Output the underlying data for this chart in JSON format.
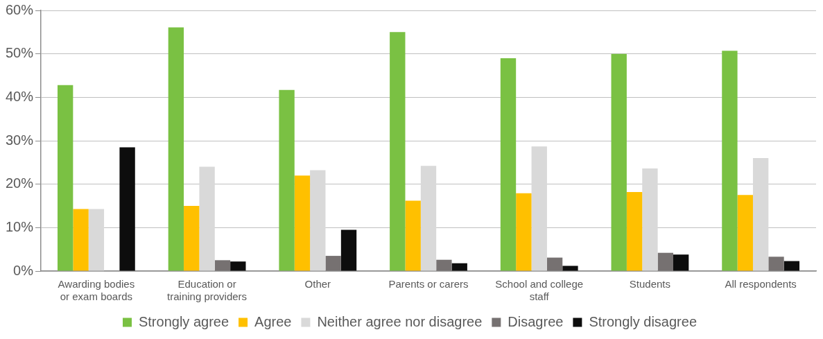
{
  "chart_data": {
    "type": "bar",
    "categories": [
      "Awarding bodies or exam boards",
      "Education or training providers",
      "Other",
      "Parents or carers",
      "School and college staff",
      "Students",
      "All respondents"
    ],
    "series": [
      {
        "name": "Strongly agree",
        "color": "#7ac143",
        "values": [
          42.8,
          56.1,
          41.7,
          55.0,
          49.0,
          50.0,
          50.7
        ]
      },
      {
        "name": "Agree",
        "color": "#ffc000",
        "values": [
          14.3,
          15.0,
          22.0,
          16.2,
          17.9,
          18.2,
          17.5
        ]
      },
      {
        "name": "Neither agree nor disagree",
        "color": "#d9d9d9",
        "values": [
          14.3,
          24.0,
          23.2,
          24.2,
          28.7,
          23.6,
          26.0
        ]
      },
      {
        "name": "Disagree",
        "color": "#767171",
        "values": [
          0,
          2.5,
          3.5,
          2.6,
          3.1,
          4.2,
          3.3
        ]
      },
      {
        "name": "Strongly disagree",
        "color": "#0d0d0d",
        "values": [
          28.5,
          2.2,
          9.5,
          1.8,
          1.2,
          3.8,
          2.3
        ]
      }
    ],
    "ylim": [
      0,
      60
    ],
    "yticks": [
      {
        "value": 0,
        "label": "0%"
      },
      {
        "value": 10,
        "label": "10%"
      },
      {
        "value": 20,
        "label": "20%"
      },
      {
        "value": 30,
        "label": "30%"
      },
      {
        "value": 40,
        "label": "40%"
      },
      {
        "value": 50,
        "label": "50%"
      },
      {
        "value": 60,
        "label": "60%"
      }
    ],
    "grid": "y",
    "legend": "bottom"
  }
}
